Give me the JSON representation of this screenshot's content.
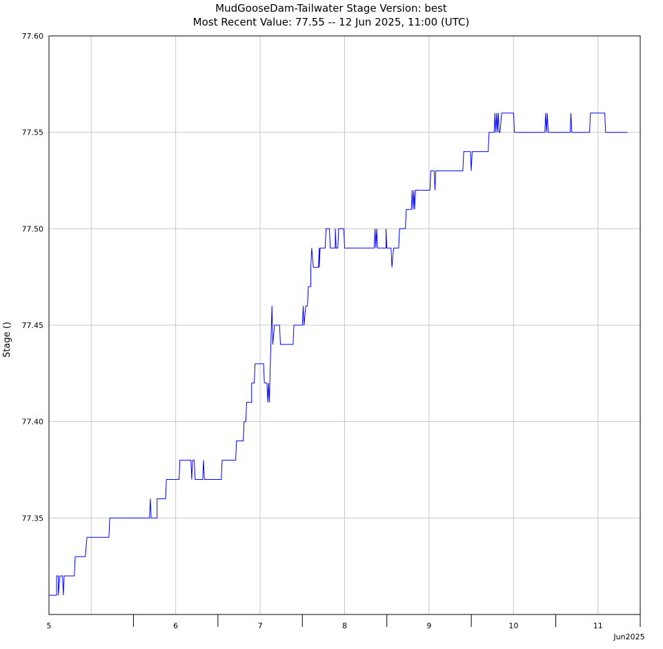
{
  "chart_data": {
    "type": "line",
    "title": "MudGooseDam-Tailwater  Stage  Version: best",
    "subtitle": "Most Recent Value: 77.55  --  12 Jun 2025, 11:00 (UTC)",
    "xlabel": "",
    "ylabel": "Stage ()",
    "x_unit_label": "Jun2025",
    "x_tick_labels": [
      "5",
      "6",
      "7",
      "8",
      "9",
      "10",
      "11"
    ],
    "x_tick_days": [
      5,
      6,
      7,
      8,
      9,
      10,
      11
    ],
    "xlim_days": [
      5.0,
      12.0
    ],
    "y_tick_labels": [
      "77.35",
      "77.40",
      "77.45",
      "77.50",
      "77.55",
      "77.60"
    ],
    "y_ticks": [
      77.35,
      77.4,
      77.45,
      77.5,
      77.55,
      77.6
    ],
    "ylim": [
      77.3,
      77.6
    ],
    "grid": true,
    "legend": "none",
    "colors": {
      "line": "#0000ff",
      "grid": "#c8c8c8",
      "axis": "#000000"
    },
    "series": [
      {
        "values": [
          [
            5.0,
            77.31
          ],
          [
            5.09,
            77.31
          ],
          [
            5.09,
            77.32
          ],
          [
            5.11,
            77.32
          ],
          [
            5.11,
            77.31
          ],
          [
            5.13,
            77.32
          ],
          [
            5.16,
            77.32
          ],
          [
            5.17,
            77.31
          ],
          [
            5.18,
            77.32
          ],
          [
            5.3,
            77.32
          ],
          [
            5.31,
            77.33
          ],
          [
            5.43,
            77.33
          ],
          [
            5.45,
            77.34
          ],
          [
            5.71,
            77.34
          ],
          [
            5.72,
            77.35
          ],
          [
            6.19,
            77.35
          ],
          [
            6.2,
            77.36
          ],
          [
            6.21,
            77.35
          ],
          [
            6.28,
            77.35
          ],
          [
            6.28,
            77.36
          ],
          [
            6.38,
            77.36
          ],
          [
            6.39,
            77.37
          ],
          [
            6.54,
            77.37
          ],
          [
            6.55,
            77.38
          ],
          [
            6.68,
            77.38
          ],
          [
            6.69,
            77.37
          ],
          [
            6.7,
            77.38
          ],
          [
            6.72,
            77.38
          ],
          [
            6.73,
            77.37
          ],
          [
            6.82,
            77.37
          ],
          [
            6.83,
            77.38
          ],
          [
            6.84,
            77.37
          ],
          [
            7.04,
            77.37
          ],
          [
            7.05,
            77.38
          ],
          [
            7.21,
            77.38
          ],
          [
            7.22,
            77.39
          ],
          [
            7.3,
            77.39
          ],
          [
            7.31,
            77.4
          ],
          [
            7.33,
            77.4
          ],
          [
            7.34,
            77.41
          ],
          [
            7.4,
            77.41
          ],
          [
            7.4,
            77.42
          ],
          [
            7.43,
            77.42
          ],
          [
            7.44,
            77.43
          ],
          [
            7.54,
            77.43
          ],
          [
            7.55,
            77.42
          ],
          [
            7.58,
            77.42
          ],
          [
            7.59,
            77.41
          ],
          [
            7.6,
            77.42
          ],
          [
            7.61,
            77.41
          ],
          [
            7.62,
            77.43
          ],
          [
            7.64,
            77.46
          ],
          [
            7.65,
            77.44
          ],
          [
            7.67,
            77.45
          ],
          [
            7.73,
            77.45
          ],
          [
            7.74,
            77.44
          ],
          [
            7.89,
            77.44
          ],
          [
            7.9,
            77.45
          ],
          [
            8.0,
            77.45
          ],
          [
            8.01,
            77.46
          ],
          [
            8.02,
            77.45
          ],
          [
            8.04,
            77.46
          ],
          [
            8.06,
            77.46
          ],
          [
            8.07,
            77.47
          ],
          [
            8.1,
            77.47
          ],
          [
            8.1,
            77.48
          ],
          [
            8.11,
            77.49
          ],
          [
            8.13,
            77.48
          ],
          [
            8.19,
            77.48
          ],
          [
            8.2,
            77.49
          ],
          [
            8.2,
            77.48
          ],
          [
            8.21,
            77.49
          ],
          [
            8.27,
            77.49
          ],
          [
            8.28,
            77.5
          ],
          [
            8.32,
            77.5
          ],
          [
            8.33,
            77.49
          ],
          [
            8.39,
            77.49
          ],
          [
            8.39,
            77.5
          ],
          [
            8.4,
            77.49
          ],
          [
            8.42,
            77.49
          ],
          [
            8.43,
            77.5
          ],
          [
            8.49,
            77.5
          ],
          [
            8.5,
            77.49
          ],
          [
            8.85,
            77.49
          ],
          [
            8.86,
            77.5
          ],
          [
            8.87,
            77.49
          ],
          [
            8.88,
            77.5
          ],
          [
            8.89,
            77.49
          ],
          [
            8.99,
            77.49
          ],
          [
            8.99,
            77.5
          ],
          [
            9.0,
            77.49
          ],
          [
            9.05,
            77.49
          ],
          [
            9.06,
            77.48
          ],
          [
            9.08,
            77.49
          ],
          [
            9.14,
            77.49
          ],
          [
            9.15,
            77.5
          ],
          [
            9.22,
            77.5
          ],
          [
            9.23,
            77.51
          ],
          [
            9.29,
            77.51
          ],
          [
            9.3,
            77.52
          ],
          [
            9.31,
            77.51
          ],
          [
            9.32,
            77.52
          ],
          [
            9.33,
            77.51
          ],
          [
            9.34,
            77.52
          ],
          [
            9.51,
            77.52
          ],
          [
            9.52,
            77.53
          ],
          [
            9.56,
            77.53
          ],
          [
            9.57,
            77.52
          ],
          [
            9.58,
            77.53
          ],
          [
            9.9,
            77.53
          ],
          [
            9.91,
            77.54
          ],
          [
            9.99,
            77.54
          ],
          [
            10.0,
            77.53
          ],
          [
            10.01,
            77.54
          ],
          [
            10.2,
            77.54
          ],
          [
            10.21,
            77.55
          ],
          [
            10.27,
            77.55
          ],
          [
            10.28,
            77.56
          ],
          [
            10.29,
            77.55
          ],
          [
            10.3,
            77.56
          ],
          [
            10.31,
            77.55
          ],
          [
            10.32,
            77.56
          ],
          [
            10.33,
            77.55
          ],
          [
            10.34,
            77.55
          ],
          [
            10.36,
            77.56
          ],
          [
            10.5,
            77.56
          ],
          [
            10.51,
            77.55
          ],
          [
            10.87,
            77.55
          ],
          [
            10.88,
            77.56
          ],
          [
            10.89,
            77.55
          ],
          [
            10.9,
            77.56
          ],
          [
            10.91,
            77.55
          ],
          [
            11.17,
            77.55
          ],
          [
            11.18,
            77.56
          ],
          [
            11.19,
            77.55
          ],
          [
            11.4,
            77.55
          ],
          [
            11.41,
            77.56
          ],
          [
            11.58,
            77.56
          ],
          [
            11.59,
            77.55
          ],
          [
            11.85,
            77.55
          ]
        ]
      }
    ]
  }
}
